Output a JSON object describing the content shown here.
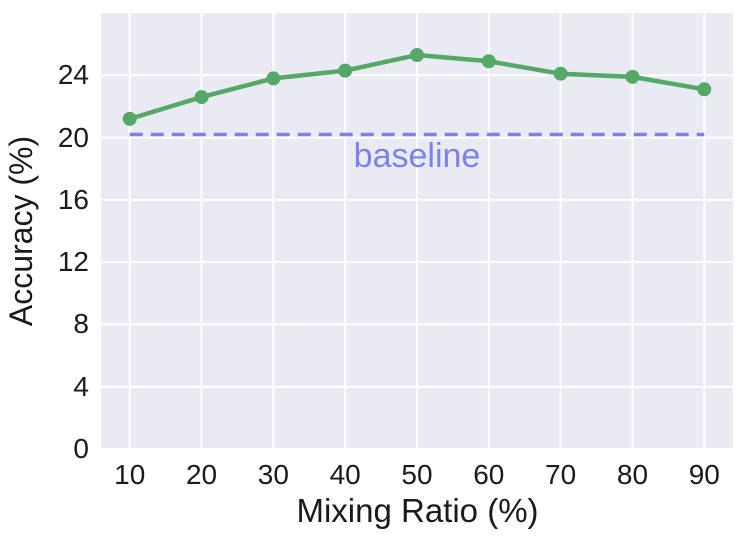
{
  "chart_data": {
    "type": "line",
    "x": [
      10,
      20,
      30,
      40,
      50,
      60,
      70,
      80,
      90
    ],
    "series": [
      {
        "name": "accuracy",
        "values": [
          21.2,
          22.6,
          23.8,
          24.3,
          25.3,
          24.9,
          24.1,
          23.9,
          23.1
        ],
        "color": "#55a868",
        "marker": "circle"
      }
    ],
    "baseline": {
      "value": 20.2,
      "label": "baseline",
      "color": "#7b82ea",
      "label_x": 50,
      "label_y": 18.8,
      "x_start": 10,
      "x_end": 90,
      "style": "dashed"
    },
    "title": "",
    "xlabel": "Mixing Ratio (%)",
    "ylabel": "Accuracy (%)",
    "xlim": [
      6,
      94
    ],
    "ylim": [
      0,
      28
    ],
    "xticks": [
      "10",
      "20",
      "30",
      "40",
      "50",
      "60",
      "70",
      "80",
      "90"
    ],
    "yticks": [
      "0",
      "4",
      "8",
      "12",
      "16",
      "20",
      "24"
    ],
    "grid": true,
    "legend": "none",
    "colors": {
      "plot_background": "#eaeaf2",
      "grid_line": "#ffffff",
      "tick_text": "#1a1a1a",
      "figure_background": "#ffffff"
    }
  }
}
